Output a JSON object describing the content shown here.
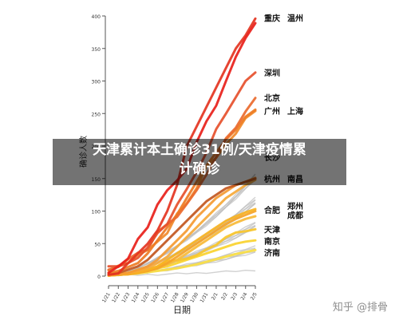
{
  "chart_data": {
    "type": "line",
    "title": "",
    "xlabel": "日期",
    "ylabel": "确诊人数",
    "ylim": [
      0,
      400
    ],
    "y_ticks": [
      0,
      50,
      100,
      150,
      200,
      250,
      300,
      350,
      400
    ],
    "x_ticks": [
      "1/21",
      "1/22",
      "1/23",
      "1/24",
      "1/25",
      "1/26",
      "1/27",
      "1/28",
      "1/29",
      "1/30",
      "1/31",
      "2/1",
      "2/2",
      "2/3",
      "2/4",
      "2/5"
    ],
    "grid": false,
    "legend": "direct-labels-right",
    "background_gray": "#bdbdbd",
    "series": [
      {
        "name": "重庆",
        "color": "#e8201a",
        "values": [
          5,
          15,
          27,
          57,
          75,
          110,
          132,
          147,
          165,
          206,
          238,
          262,
          300,
          337,
          366,
          389
        ]
      },
      {
        "name": "温州",
        "color": "#e43421",
        "values": [
          2,
          4,
          20,
          35,
          50,
          70,
          100,
          140,
          200,
          230,
          260,
          290,
          320,
          350,
          370,
          396
        ]
      },
      {
        "name": "深圳",
        "color": "#e6502c",
        "values": [
          15,
          15,
          20,
          28,
          44,
          66,
          80,
          110,
          134,
          160,
          190,
          226,
          250,
          275,
          300,
          313
        ]
      },
      {
        "name": "北京",
        "color": "#ea6a2e",
        "values": [
          10,
          14,
          26,
          36,
          41,
          68,
          80,
          91,
          111,
          132,
          156,
          183,
          212,
          228,
          253,
          274
        ]
      },
      {
        "name": "广州",
        "color": "#ee7b24",
        "values": [
          5,
          8,
          14,
          20,
          35,
          55,
          75,
          95,
          120,
          145,
          170,
          190,
          210,
          225,
          245,
          256
        ]
      },
      {
        "name": "上海",
        "color": "#f08a2a",
        "values": [
          9,
          16,
          20,
          33,
          40,
          53,
          66,
          96,
          112,
          135,
          169,
          182,
          203,
          219,
          243,
          254
        ]
      },
      {
        "name": "长沙",
        "color": "#c2571f",
        "values": [
          3,
          5,
          10,
          15,
          25,
          40,
          55,
          70,
          85,
          100,
          115,
          125,
          135,
          140,
          145,
          150
        ]
      },
      {
        "name": "杭州",
        "color": "#f49a32",
        "values": [
          2,
          3,
          5,
          10,
          15,
          25,
          40,
          55,
          70,
          90,
          105,
          120,
          130,
          140,
          145,
          151
        ]
      },
      {
        "name": "南昌",
        "color": "#f6a938",
        "values": [
          2,
          3,
          5,
          8,
          12,
          20,
          30,
          45,
          60,
          75,
          90,
          105,
          120,
          130,
          140,
          148
        ]
      },
      {
        "name": "合肥",
        "color": "#f7b21f",
        "values": [
          1,
          2,
          4,
          6,
          10,
          15,
          25,
          35,
          45,
          55,
          65,
          75,
          85,
          92,
          98,
          103
        ]
      },
      {
        "name": "郑州",
        "color": "#f5a327",
        "values": [
          1,
          2,
          3,
          5,
          8,
          12,
          20,
          30,
          40,
          50,
          60,
          70,
          80,
          88,
          94,
          100
        ]
      },
      {
        "name": "成都",
        "color": "#f7ba37",
        "values": [
          1,
          2,
          3,
          5,
          8,
          12,
          18,
          25,
          35,
          45,
          55,
          65,
          75,
          82,
          88,
          92
        ]
      },
      {
        "name": "天津",
        "color": "#f9c52a",
        "values": [
          2,
          4,
          5,
          8,
          10,
          14,
          23,
          24,
          27,
          32,
          41,
          48,
          60,
          67,
          69,
          72
        ]
      },
      {
        "name": "南京",
        "color": "#fad32e",
        "values": [
          1,
          2,
          3,
          5,
          8,
          12,
          15,
          20,
          25,
          30,
          35,
          40,
          45,
          50,
          53,
          55
        ]
      },
      {
        "name": "济南",
        "color": "#fbe043",
        "values": [
          1,
          2,
          3,
          4,
          6,
          8,
          10,
          12,
          15,
          18,
          22,
          26,
          30,
          34,
          37,
          40
        ]
      }
    ],
    "direct_labels": [
      {
        "text": "重庆",
        "y": 397,
        "col": 0
      },
      {
        "text": "温州",
        "y": 397,
        "col": 1
      },
      {
        "text": "深圳",
        "y": 313,
        "col": 0
      },
      {
        "text": "北京",
        "y": 274,
        "col": 0
      },
      {
        "text": "广州",
        "y": 254,
        "col": 0
      },
      {
        "text": "上海",
        "y": 254,
        "col": 1
      },
      {
        "text": "长沙",
        "y": 183,
        "col": 0
      },
      {
        "text": "杭州",
        "y": 150,
        "col": 0
      },
      {
        "text": "南昌",
        "y": 150,
        "col": 1
      },
      {
        "text": "合肥",
        "y": 102,
        "col": 0
      },
      {
        "text": "郑州",
        "y": 108,
        "col": 1
      },
      {
        "text": "成都",
        "y": 94,
        "col": 1
      },
      {
        "text": "天津",
        "y": 72,
        "col": 0
      },
      {
        "text": "南京",
        "y": 54,
        "col": 0
      },
      {
        "text": "济南",
        "y": 36,
        "col": 0
      }
    ]
  },
  "overlay": {
    "line1": "天津累计本土确诊31例/天津疫情累",
    "line2": "计确诊"
  },
  "watermark": "知乎 @排骨"
}
